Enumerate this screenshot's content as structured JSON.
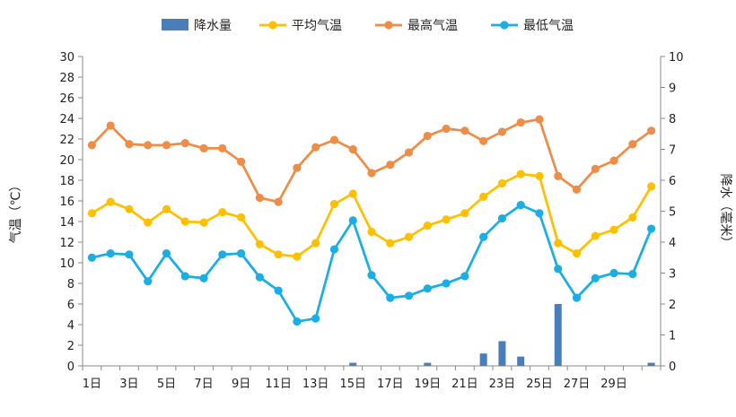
{
  "chart_data": {
    "type": "bar+line",
    "title": "",
    "legend": {
      "position": "top",
      "items": [
        {
          "name": "降水量",
          "kind": "bar",
          "color": "#4a7ebb"
        },
        {
          "name": "平均气温",
          "kind": "line",
          "color": "#ffc000"
        },
        {
          "name": "最高气温",
          "kind": "line",
          "color": "#ed8d47"
        },
        {
          "name": "最低气温",
          "kind": "line",
          "color": "#1aaee5"
        }
      ]
    },
    "categories": [
      "1日",
      "2日",
      "3日",
      "4日",
      "5日",
      "6日",
      "7日",
      "8日",
      "9日",
      "10日",
      "11日",
      "12日",
      "13日",
      "14日",
      "15日",
      "16日",
      "17日",
      "18日",
      "19日",
      "20日",
      "21日",
      "22日",
      "23日",
      "24日",
      "25日",
      "26日",
      "27日",
      "28日",
      "29日",
      "30日",
      "31日"
    ],
    "x_tick_labels": [
      "1日",
      "3日",
      "5日",
      "7日",
      "9日",
      "11日",
      "13日",
      "15日",
      "17日",
      "19日",
      "21日",
      "23日",
      "25日",
      "27日",
      "29日"
    ],
    "y_left": {
      "label": "气温（℃）",
      "min": 0,
      "max": 30,
      "step": 2,
      "ticks": [
        "0",
        "2",
        "4",
        "6",
        "8",
        "10",
        "12",
        "14",
        "16",
        "18",
        "20",
        "22",
        "24",
        "26",
        "28",
        "30"
      ]
    },
    "y_right": {
      "label": "降水（毫米）",
      "min": 0,
      "max": 10,
      "step": 1,
      "ticks": [
        "0",
        "1",
        "2",
        "3",
        "4",
        "5",
        "6",
        "7",
        "8",
        "9",
        "10"
      ]
    },
    "series": [
      {
        "name": "降水量",
        "axis": "right",
        "type": "bar",
        "values": [
          0,
          0,
          0,
          0,
          0,
          0,
          0,
          0,
          0,
          0,
          0,
          0,
          0,
          0,
          0.1,
          0,
          0,
          0,
          0.1,
          0,
          0,
          0.4,
          0.8,
          0.3,
          0,
          2.0,
          0,
          0,
          0,
          0,
          0.1
        ]
      },
      {
        "name": "平均气温",
        "axis": "left",
        "type": "line",
        "values": [
          14.8,
          15.9,
          15.2,
          13.9,
          15.2,
          14.0,
          13.9,
          14.9,
          14.4,
          11.8,
          10.8,
          10.6,
          11.9,
          15.7,
          16.7,
          13.0,
          11.9,
          12.5,
          13.6,
          14.2,
          14.8,
          16.4,
          17.7,
          18.6,
          18.4,
          11.9,
          10.9,
          12.6,
          13.2,
          14.4,
          17.4
        ]
      },
      {
        "name": "最高气温",
        "axis": "left",
        "type": "line",
        "values": [
          21.4,
          23.3,
          21.5,
          21.4,
          21.4,
          21.6,
          21.1,
          21.1,
          19.8,
          16.3,
          15.9,
          19.2,
          21.2,
          21.9,
          21.0,
          18.7,
          19.5,
          20.7,
          22.3,
          23.0,
          22.8,
          21.8,
          22.7,
          23.6,
          23.9,
          18.4,
          17.1,
          19.1,
          19.9,
          21.5,
          22.8
        ]
      },
      {
        "name": "最低气温",
        "axis": "left",
        "type": "line",
        "values": [
          10.5,
          10.9,
          10.8,
          8.2,
          10.9,
          8.7,
          8.5,
          10.8,
          10.9,
          8.6,
          7.3,
          4.3,
          4.6,
          11.3,
          14.1,
          8.8,
          6.6,
          6.8,
          7.5,
          8.0,
          8.7,
          12.5,
          14.3,
          15.6,
          14.8,
          9.4,
          6.6,
          8.5,
          9.0,
          8.9,
          13.3
        ]
      }
    ]
  }
}
